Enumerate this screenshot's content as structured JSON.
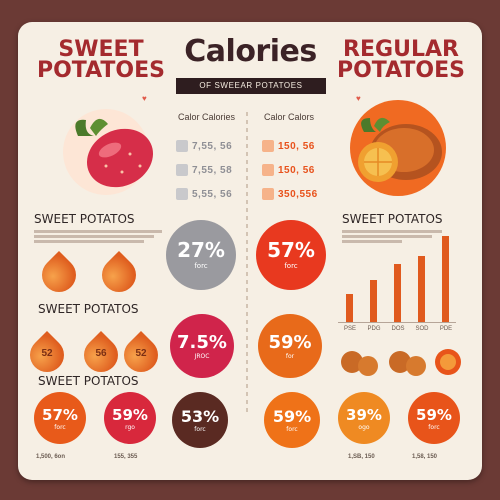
{
  "header": {
    "left_title_l1": "SWEET",
    "left_title_l2": "POTATOES",
    "center_title": "Calories",
    "ribbon_text": "OF SWEEAR POTATOES",
    "right_title_l1": "REGULAR",
    "right_title_l2": "POTATOES"
  },
  "calories_left": {
    "heading": "Calor Calories",
    "rows": [
      "7,55, 56",
      "7,55, 58",
      "5,55, 56"
    ]
  },
  "calories_right": {
    "heading": "Calor Calors",
    "rows": [
      "150, 56",
      "150, 56",
      "350,556"
    ]
  },
  "left_section1": {
    "label": "SWEET POTATOS"
  },
  "left_section2": {
    "label": "SWEET POTATOS",
    "drops": [
      "52",
      "56",
      "52"
    ]
  },
  "left_section3": {
    "label": "SWEET POTATOS"
  },
  "right_section1": {
    "label": "SWEET POTATOS",
    "ticks": [
      "PSE",
      "PDG",
      "DOS",
      "SOD",
      "PDE"
    ]
  },
  "circles_center": [
    {
      "pct": "27%",
      "sub": "forc",
      "color": "#9a9a9f"
    },
    {
      "pct": "57%",
      "sub": "forc",
      "color": "#e8391f"
    },
    {
      "pct": "7.5%",
      "sub": "JROC",
      "color": "#d0244b"
    },
    {
      "pct": "59%",
      "sub": "for",
      "color": "#e86a1a"
    }
  ],
  "circles_bottom": [
    {
      "pct": "57%",
      "sub": "forc",
      "color": "#e85a1a"
    },
    {
      "pct": "59%",
      "sub": "rgo",
      "color": "#d8283c"
    },
    {
      "pct": "53%",
      "sub": "forc",
      "color": "#5a2a22"
    },
    {
      "pct": "59%",
      "sub": "forc",
      "color": "#ef7218"
    },
    {
      "pct": "39%",
      "sub": "ogo",
      "color": "#ef8a22"
    },
    {
      "pct": "59%",
      "sub": "forc",
      "color": "#e8541a"
    }
  ],
  "footer": {
    "left": "1,500, 6on",
    "left2": "155, 355",
    "right": "1,SB, 150",
    "right2": "1,58, 150"
  },
  "colors": {
    "background": "#6b3a35",
    "card": "#f6efe4",
    "title_red": "#a42a2e",
    "orange": "#e05a1e"
  }
}
